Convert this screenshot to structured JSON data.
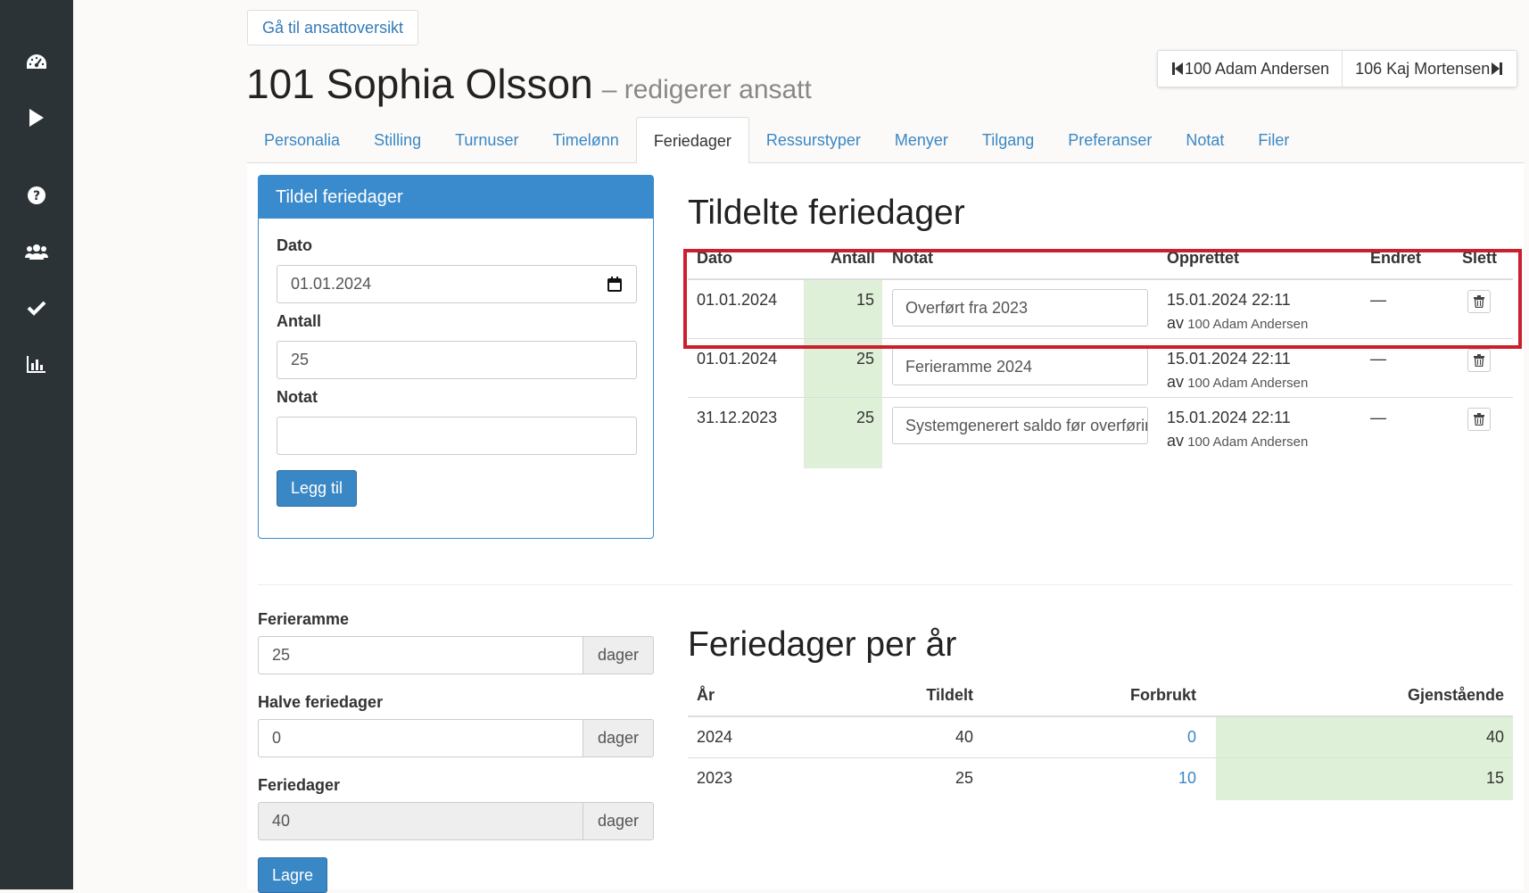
{
  "sidebar": {
    "icons": [
      "dashboard-icon",
      "play-icon",
      "help-icon",
      "users-icon",
      "check-icon",
      "chart-icon"
    ]
  },
  "header": {
    "back_button": "Gå til ansattoversikt",
    "title": "101 Sophia Olsson",
    "subtitle": "– redigerer ansatt",
    "prev_employee": "100 Adam Andersen",
    "next_employee": "106 Kaj Mortensen"
  },
  "tabs": [
    {
      "label": "Personalia"
    },
    {
      "label": "Stilling"
    },
    {
      "label": "Turnuser"
    },
    {
      "label": "Timelønn"
    },
    {
      "label": "Feriedager"
    },
    {
      "label": "Ressurstyper"
    },
    {
      "label": "Menyer"
    },
    {
      "label": "Tilgang"
    },
    {
      "label": "Preferanser"
    },
    {
      "label": "Notat"
    },
    {
      "label": "Filer"
    }
  ],
  "assign_panel": {
    "title": "Tildel feriedager",
    "date_label": "Dato",
    "date_value": "01.01.2024",
    "count_label": "Antall",
    "count_value": "25",
    "note_label": "Notat",
    "note_value": "",
    "add_button": "Legg til"
  },
  "settings": {
    "frame_label": "Ferieramme",
    "frame_value": "25",
    "half_label": "Halve feriedager",
    "half_value": "0",
    "days_label": "Feriedager",
    "days_value": "40",
    "unit": "dager",
    "save_button": "Lagre"
  },
  "assigned": {
    "title": "Tildelte feriedager",
    "columns": [
      "Dato",
      "Antall",
      "Notat",
      "Opprettet",
      "Endret",
      "Slett"
    ],
    "rows": [
      {
        "date": "01.01.2024",
        "count": "15",
        "note": "Overført fra 2023",
        "created": "15.01.2024 22:11",
        "av": "av",
        "by": "100 Adam Andersen",
        "changed": "—"
      },
      {
        "date": "01.01.2024",
        "count": "25",
        "note": "Ferieramme 2024",
        "created": "15.01.2024 22:11",
        "av": "av",
        "by": "100 Adam Andersen",
        "changed": "—"
      },
      {
        "date": "31.12.2023",
        "count": "25",
        "note": "Systemgenerert saldo før overføring",
        "created": "15.01.2024 22:11",
        "av": "av",
        "by": "100 Adam Andersen",
        "changed": "—"
      }
    ]
  },
  "per_year": {
    "title": "Feriedager per år",
    "columns": [
      "År",
      "Tildelt",
      "Forbrukt",
      "Gjenstående"
    ],
    "rows": [
      {
        "year": "2024",
        "assigned": "40",
        "used": "0",
        "remaining": "40"
      },
      {
        "year": "2023",
        "assigned": "25",
        "used": "10",
        "remaining": "15"
      }
    ]
  },
  "colors": {
    "accent": "#3a87c5",
    "sidebar": "#2b3336",
    "success_bg": "#dff0d8",
    "highlight": "#cc1f2d"
  }
}
